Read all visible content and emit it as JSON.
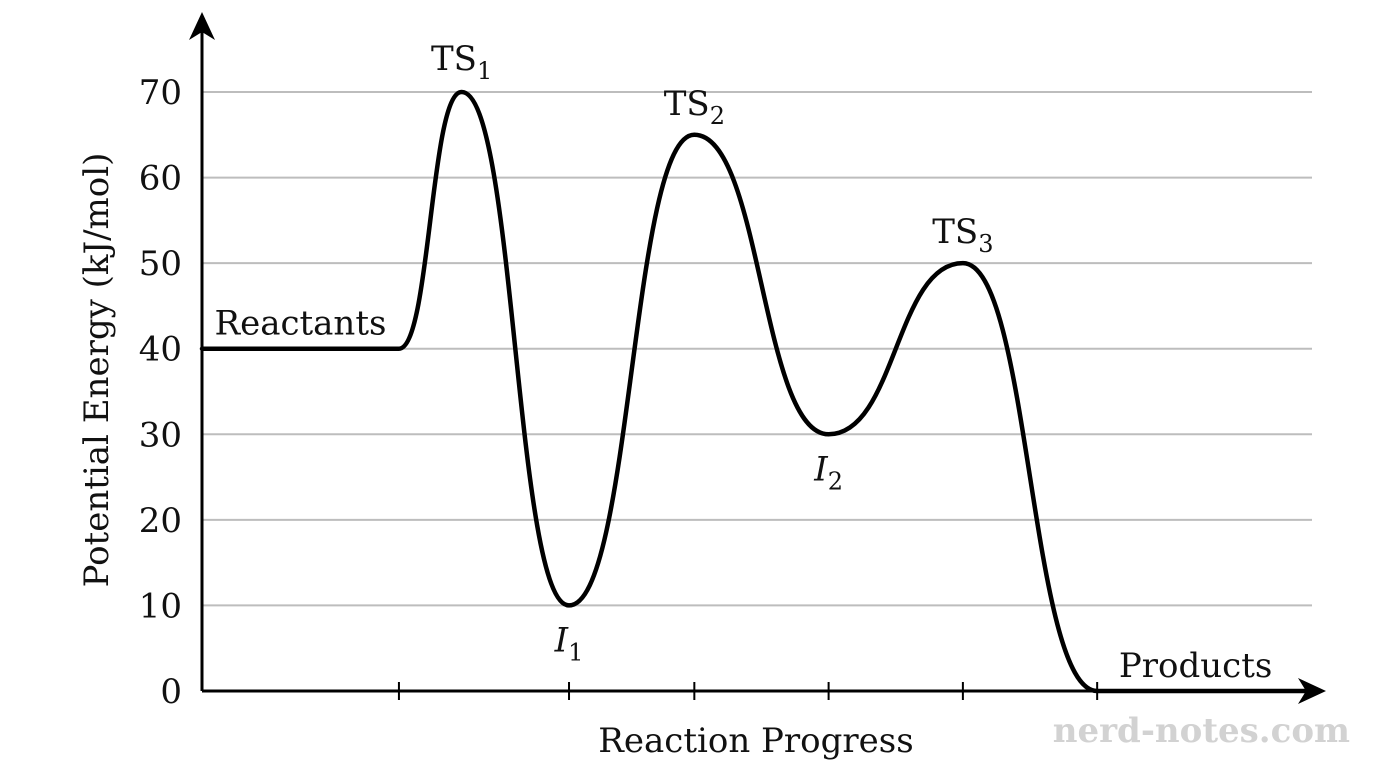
{
  "chart_data": {
    "type": "line",
    "xlabel": "Reaction Progress",
    "ylabel": "Potential Energy (kJ/mol)",
    "ylim": [
      0,
      70
    ],
    "yticks": [
      "0",
      "10",
      "20",
      "30",
      "40",
      "50",
      "60",
      "70"
    ],
    "grid": true,
    "series": [
      {
        "points": [
          {
            "x": 0,
            "y": 40
          },
          {
            "x": 1.1,
            "y": 40
          },
          {
            "x": 1.45,
            "y": 70
          },
          {
            "x": 2.05,
            "y": 10
          },
          {
            "x": 2.75,
            "y": 65
          },
          {
            "x": 3.5,
            "y": 30
          },
          {
            "x": 4.25,
            "y": 50
          },
          {
            "x": 5.0,
            "y": 0
          },
          {
            "x": 6.2,
            "y": 0
          }
        ]
      }
    ],
    "x_ticks": [
      1.1,
      2.05,
      2.75,
      3.5,
      4.25,
      5.0
    ],
    "annotations": [
      {
        "id": "reactants",
        "text": "Reactants",
        "sub": "",
        "italic": false,
        "x": 0.55,
        "y": 40
      },
      {
        "id": "ts1",
        "text": "TS",
        "sub": "1",
        "italic": false,
        "x": 1.45,
        "y": 70
      },
      {
        "id": "ts2",
        "text": "TS",
        "sub": "2",
        "italic": false,
        "x": 2.75,
        "y": 65
      },
      {
        "id": "ts3",
        "text": "TS",
        "sub": "3",
        "italic": false,
        "x": 4.25,
        "y": 50
      },
      {
        "id": "i1",
        "text": "I",
        "sub": "1",
        "italic": true,
        "x": 2.05,
        "y": 10
      },
      {
        "id": "i2",
        "text": "I",
        "sub": "2",
        "italic": true,
        "x": 3.5,
        "y": 30
      },
      {
        "id": "products",
        "text": "Products",
        "sub": "",
        "italic": false,
        "x": 5.55,
        "y": 0
      }
    ]
  },
  "watermark": "nerd-notes.com",
  "colors": {
    "curve": "#000000",
    "grid": "#bdbdbd",
    "axis": "#000000",
    "watermark": "#d2d2d2"
  }
}
